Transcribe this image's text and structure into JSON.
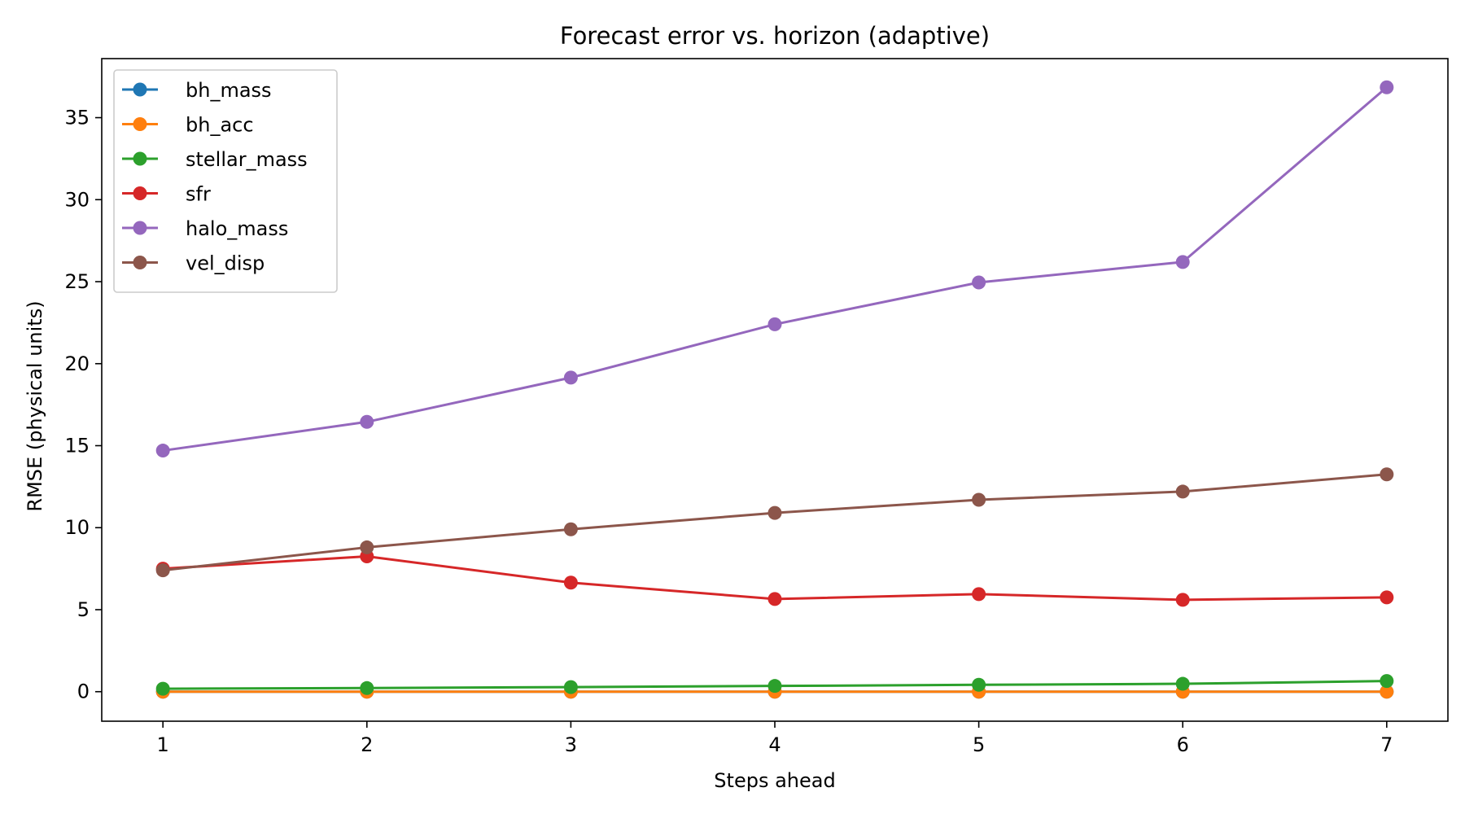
{
  "chart_data": {
    "type": "line",
    "title": "Forecast error vs. horizon (adaptive)",
    "xlabel": "Steps ahead",
    "ylabel": "RMSE (physical units)",
    "x": [
      1,
      2,
      3,
      4,
      5,
      6,
      7
    ],
    "xticks": [
      "1",
      "2",
      "3",
      "4",
      "5",
      "6",
      "7"
    ],
    "yticks": [
      "0",
      "5",
      "10",
      "15",
      "20",
      "25",
      "30",
      "35"
    ],
    "xlim": [
      0.7,
      7.3
    ],
    "ylim": [
      -1.8,
      38.6
    ],
    "grid": false,
    "legend_position": "top-left",
    "series": [
      {
        "name": "bh_mass",
        "color": "#1f77b4",
        "values": [
          0.0,
          0.0,
          0.0,
          0.0,
          0.0,
          0.0,
          0.0
        ]
      },
      {
        "name": "bh_acc",
        "color": "#ff7f0e",
        "values": [
          0.0,
          0.0,
          0.0,
          0.0,
          0.0,
          0.0,
          0.0
        ]
      },
      {
        "name": "stellar_mass",
        "color": "#2ca02c",
        "values": [
          0.18,
          0.22,
          0.28,
          0.35,
          0.42,
          0.48,
          0.65
        ]
      },
      {
        "name": "sfr",
        "color": "#d62728",
        "values": [
          7.5,
          8.25,
          6.65,
          5.65,
          5.95,
          5.6,
          5.75
        ]
      },
      {
        "name": "halo_mass",
        "color": "#9467bd",
        "values": [
          14.7,
          16.45,
          19.15,
          22.4,
          24.95,
          26.2,
          36.85
        ]
      },
      {
        "name": "vel_disp",
        "color": "#8c564b",
        "values": [
          7.4,
          8.8,
          9.9,
          10.9,
          11.7,
          12.2,
          13.25
        ]
      }
    ]
  }
}
